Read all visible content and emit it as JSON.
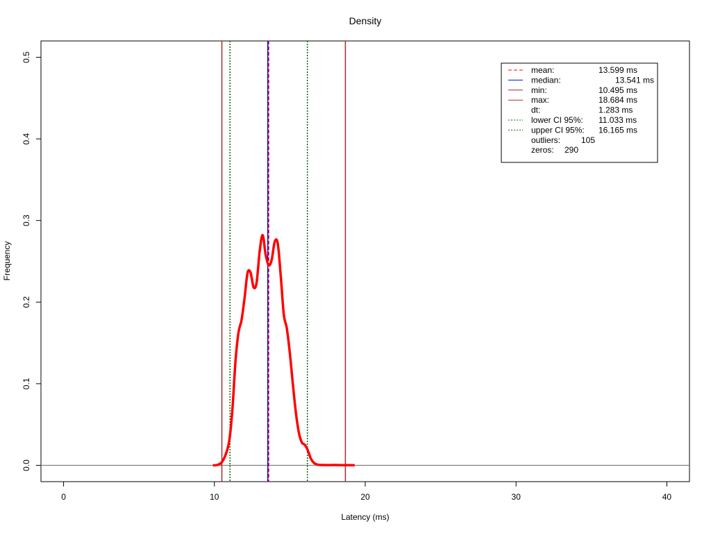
{
  "chart_data": {
    "type": "line",
    "title": "Density",
    "xlabel": "Latency (ms)",
    "ylabel": "Frequency",
    "xlim": [
      -1.5,
      41.5
    ],
    "ylim": [
      -0.02,
      0.52
    ],
    "x_ticks": [
      0,
      10,
      20,
      30,
      40
    ],
    "y_ticks": [
      0.0,
      0.1,
      0.2,
      0.3,
      0.4,
      0.5
    ],
    "x_tick_labels": [
      "0",
      "10",
      "20",
      "30",
      "40"
    ],
    "y_tick_labels": [
      "0.0",
      "0.1",
      "0.2",
      "0.3",
      "0.4",
      "0.5"
    ],
    "grid": false,
    "baseline_y": 0,
    "legend_position": "top-right",
    "density_curve": {
      "color": "#ff0000",
      "x": [
        9.9,
        10.2,
        10.5,
        10.8,
        11.0,
        11.2,
        11.4,
        11.6,
        11.8,
        12.0,
        12.2,
        12.4,
        12.6,
        12.8,
        13.0,
        13.2,
        13.4,
        13.6,
        13.8,
        14.0,
        14.2,
        14.4,
        14.6,
        14.8,
        15.0,
        15.2,
        15.4,
        15.6,
        15.8,
        16.0,
        16.2,
        16.4,
        16.6,
        16.8,
        17.0,
        17.5,
        18.0,
        18.5,
        19.0,
        19.3
      ],
      "y": [
        0.0,
        0.0005,
        0.004,
        0.016,
        0.032,
        0.07,
        0.128,
        0.163,
        0.178,
        0.205,
        0.236,
        0.236,
        0.218,
        0.224,
        0.262,
        0.282,
        0.258,
        0.245,
        0.252,
        0.274,
        0.272,
        0.232,
        0.185,
        0.168,
        0.138,
        0.1,
        0.065,
        0.04,
        0.028,
        0.025,
        0.018,
        0.008,
        0.003,
        0.001,
        0.0005,
        0.0003,
        0.0004,
        0.0002,
        0.0002,
        0.0001
      ]
    },
    "vertical_lines": [
      {
        "key": "mean",
        "x": 13.599,
        "color": "#ff0000",
        "dash": "dashed"
      },
      {
        "key": "median",
        "x": 13.541,
        "color": "#0000ff",
        "dash": "solid"
      },
      {
        "key": "min",
        "x": 10.495,
        "color": "#a52a2a",
        "dash": "solid"
      },
      {
        "key": "max",
        "x": 18.684,
        "color": "#a52a2a",
        "dash": "solid"
      },
      {
        "key": "lower_ci",
        "x": 11.033,
        "color": "#006400",
        "dash": "dotted"
      },
      {
        "key": "upper_ci",
        "x": 16.165,
        "color": "#006400",
        "dash": "dotted"
      }
    ],
    "legend": [
      {
        "label": "mean:",
        "value": "13.599 ms",
        "color": "#ff0000",
        "dash": "dashed"
      },
      {
        "label": "median:",
        "value": "13.541 ms",
        "color": "#0000ff",
        "dash": "solid"
      },
      {
        "label": "min:",
        "value": "10.495 ms",
        "color": "#a52a2a",
        "dash": "solid"
      },
      {
        "label": "max:",
        "value": "18.684 ms",
        "color": "#a52a2a",
        "dash": "solid"
      },
      {
        "label": "dt:",
        "value": "1.283 ms",
        "color": "",
        "dash": "none"
      },
      {
        "label": "lower CI 95%:",
        "value": "11.033 ms",
        "color": "#006400",
        "dash": "dotted"
      },
      {
        "label": "upper CI 95%:",
        "value": "16.165 ms",
        "color": "#006400",
        "dash": "dotted"
      },
      {
        "label": "outliers:",
        "value": "105",
        "color": "",
        "dash": "none"
      },
      {
        "label": "zeros:",
        "value": "290",
        "color": "",
        "dash": "none"
      }
    ]
  }
}
